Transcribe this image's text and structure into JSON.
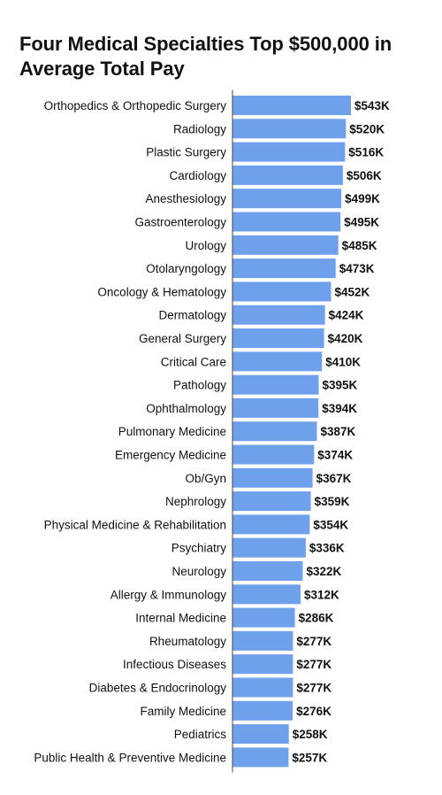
{
  "chart_data": {
    "type": "bar",
    "orientation": "horizontal",
    "title": "Four Medical Specialties Top $500,000 in Average Total Pay",
    "bar_color": "#6fa0ec",
    "axis_color": "#444444",
    "categories": [
      "Orthopedics & Orthopedic Surgery",
      "Radiology",
      "Plastic Surgery",
      "Cardiology",
      "Anesthesiology",
      "Gastroenterology",
      "Urology",
      "Otolaryngology",
      "Oncology & Hematology",
      "Dermatology",
      "General Surgery",
      "Critical Care",
      "Pathology",
      "Ophthalmology",
      "Pulmonary Medicine",
      "Emergency Medicine",
      "Ob/Gyn",
      "Nephrology",
      "Physical Medicine & Rehabilitation",
      "Psychiatry",
      "Neurology",
      "Allergy & Immunology",
      "Internal Medicine",
      "Rheumatology",
      "Infectious Diseases",
      "Diabetes & Endocrinology",
      "Family Medicine",
      "Pediatrics",
      "Public Health & Preventive Medicine"
    ],
    "values": [
      543,
      520,
      516,
      506,
      499,
      495,
      485,
      473,
      452,
      424,
      420,
      410,
      395,
      394,
      387,
      374,
      367,
      359,
      354,
      336,
      322,
      312,
      286,
      277,
      277,
      277,
      276,
      258,
      257
    ],
    "value_labels": [
      "$543K",
      "$520K",
      "$516K",
      "$506K",
      "$499K",
      "$495K",
      "$485K",
      "$473K",
      "$452K",
      "$424K",
      "$420K",
      "$410K",
      "$395K",
      "$394K",
      "$387K",
      "$374K",
      "$367K",
      "$359K",
      "$354K",
      "$336K",
      "$322K",
      "$312K",
      "$286K",
      "$277K",
      "$277K",
      "$277K",
      "$276K",
      "$258K",
      "$257K"
    ],
    "unit": "thousands of USD",
    "xlim": [
      0,
      543
    ],
    "grid": false,
    "legend": "none"
  }
}
